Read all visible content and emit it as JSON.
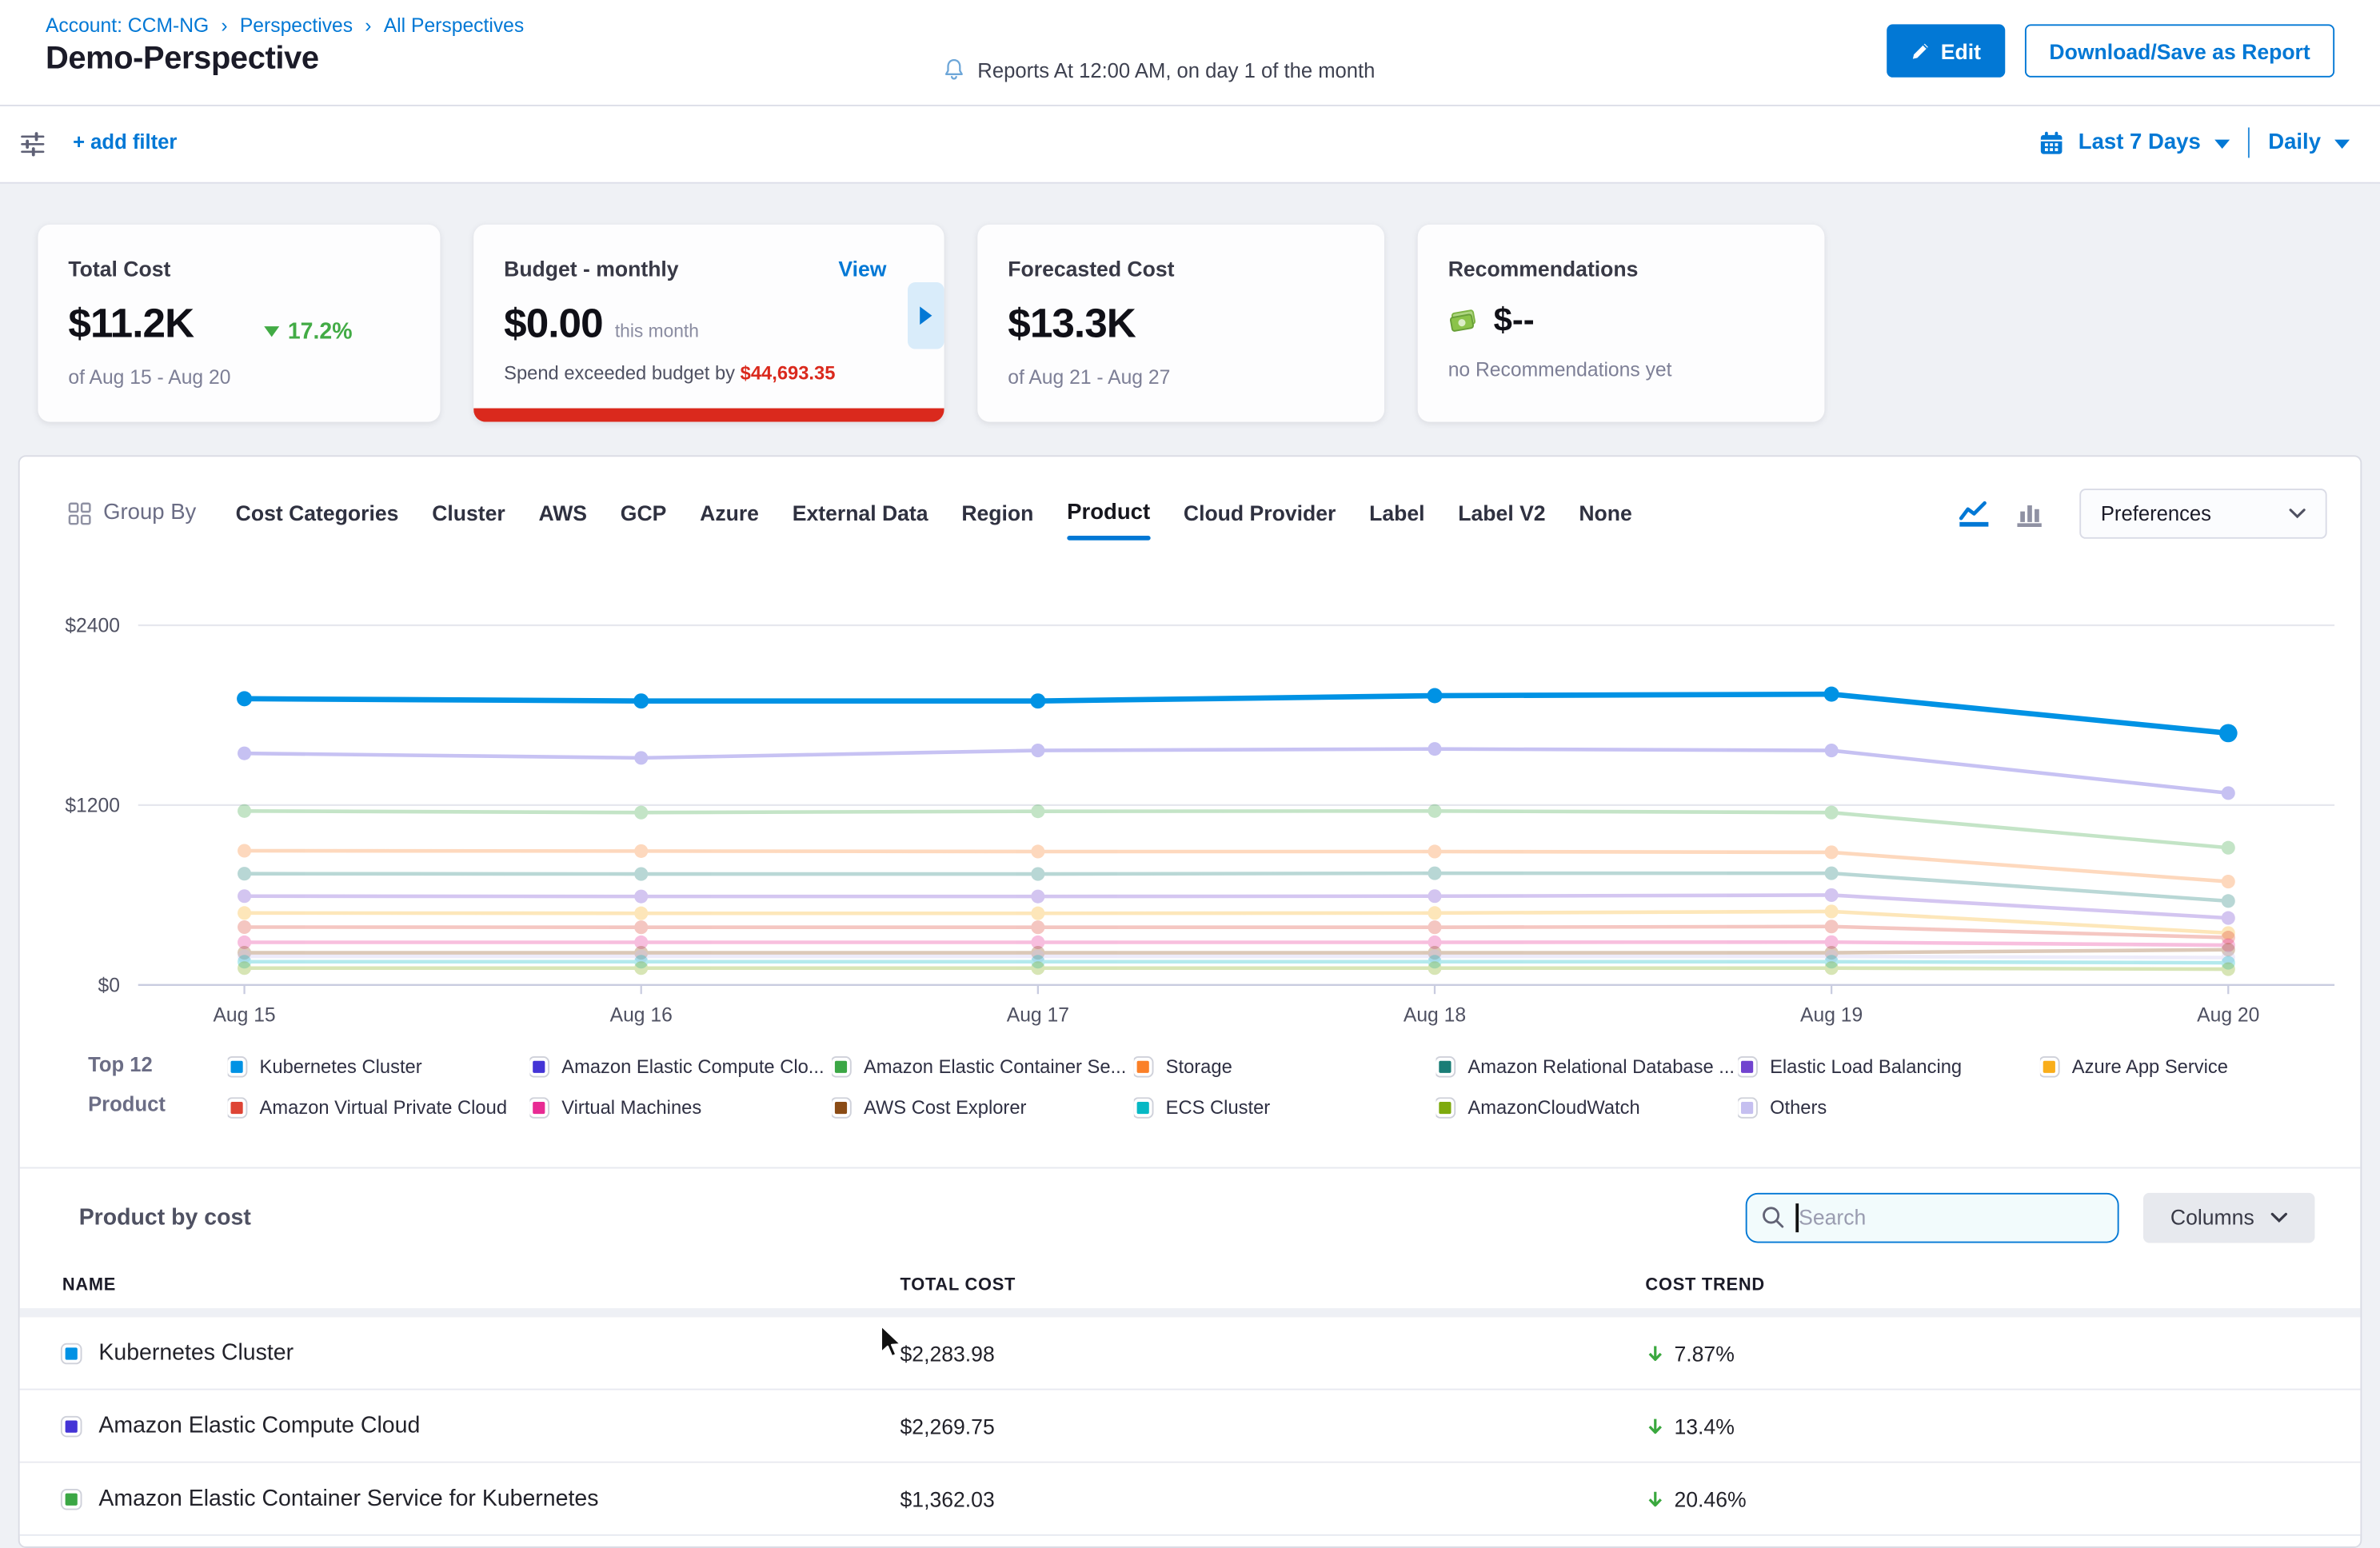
{
  "header": {
    "breadcrumb": [
      {
        "label": "Account: CCM-NG"
      },
      {
        "label": "Perspectives"
      },
      {
        "label": "All Perspectives"
      }
    ],
    "title": "Demo-Perspective",
    "reports_note": "Reports At 12:00 AM, on day 1 of the month",
    "edit_label": "Edit",
    "download_label": "Download/Save as Report"
  },
  "filterbar": {
    "add_filter_label": "+ add filter",
    "date_range_label": "Last 7 Days",
    "granularity_label": "Daily"
  },
  "summary_cards": {
    "total_cost": {
      "title": "Total Cost",
      "value": "$11.2K",
      "trend_value": "17.2%",
      "trend_direction": "down",
      "period": "of Aug 15 - Aug 20"
    },
    "budget": {
      "title": "Budget - monthly",
      "view_label": "View",
      "value": "$0.00",
      "value_note": "this month",
      "exceeded_label": "Spend exceeded budget by",
      "exceeded_amount": "$44,693.35"
    },
    "forecasted_cost": {
      "title": "Forecasted Cost",
      "value": "$13.3K",
      "period": "of Aug 21 - Aug 27"
    },
    "recommendations": {
      "title": "Recommendations",
      "value": "$--",
      "note": "no Recommendations yet"
    }
  },
  "group_by": {
    "label": "Group By",
    "tabs": [
      "Cost Categories",
      "Cluster",
      "AWS",
      "GCP",
      "Azure",
      "External Data",
      "Region",
      "Product",
      "Cloud Provider",
      "Label",
      "Label V2",
      "None"
    ],
    "active_tab": "Product",
    "preferences_label": "Preferences"
  },
  "chart_data": {
    "type": "line",
    "title": "",
    "xlabel": "",
    "ylabel": "",
    "x": [
      "Aug 15",
      "Aug 16",
      "Aug 17",
      "Aug 18",
      "Aug 19",
      "Aug 20"
    ],
    "ylim": [
      0,
      2400
    ],
    "y_ticks": [
      {
        "value": 0,
        "label": "$0"
      },
      {
        "value": 1200,
        "label": "$1200"
      },
      {
        "value": 2400,
        "label": "$2400"
      }
    ],
    "grid": "horizontal",
    "legend_position": "bottom",
    "series": [
      {
        "name": "Kubernetes Cluster",
        "color": "#0092e4",
        "emphasis": true,
        "values": [
          1910,
          1895,
          1895,
          1930,
          1940,
          1680
        ]
      },
      {
        "name": "Amazon Elastic Compute Cloud",
        "color": "#4434d6",
        "emphasis": false,
        "values": [
          1545,
          1515,
          1565,
          1575,
          1565,
          1280
        ]
      },
      {
        "name": "Amazon Elastic Container Service for Kubernetes",
        "color": "#3ba745",
        "emphasis": false,
        "values": [
          1160,
          1150,
          1158,
          1160,
          1150,
          915
        ]
      },
      {
        "name": "Storage",
        "color": "#fb8028",
        "emphasis": false,
        "values": [
          895,
          893,
          890,
          890,
          885,
          690
        ]
      },
      {
        "name": "Amazon Relational Database Service",
        "color": "#197d76",
        "emphasis": false,
        "values": [
          742,
          740,
          740,
          745,
          745,
          560
        ]
      },
      {
        "name": "Elastic Load Balancing",
        "color": "#7143cf",
        "emphasis": false,
        "values": [
          592,
          590,
          590,
          592,
          600,
          447
        ]
      },
      {
        "name": "Azure App Service",
        "color": "#f9ae1b",
        "emphasis": false,
        "values": [
          480,
          478,
          478,
          480,
          490,
          346
        ]
      },
      {
        "name": "Amazon Virtual Private Cloud",
        "color": "#de4435",
        "emphasis": false,
        "values": [
          386,
          385,
          385,
          385,
          390,
          316
        ]
      },
      {
        "name": "Virtual Machines",
        "color": "#e82b93",
        "emphasis": false,
        "values": [
          285,
          285,
          285,
          285,
          286,
          265
        ]
      },
      {
        "name": "AWS Cost Explorer",
        "color": "#8a4b15",
        "emphasis": false,
        "values": [
          215,
          215,
          215,
          215,
          215,
          235
        ]
      },
      {
        "name": "Others",
        "color": "#c5bff0",
        "emphasis": false,
        "values": [
          190,
          190,
          190,
          190,
          190,
          182
        ]
      },
      {
        "name": "ECS Cluster",
        "color": "#06b8c4",
        "emphasis": false,
        "values": [
          155,
          155,
          155,
          155,
          155,
          148
        ]
      },
      {
        "name": "AmazonCloudWatch",
        "color": "#7eaa0d",
        "emphasis": false,
        "values": [
          112,
          112,
          112,
          112,
          112,
          105
        ]
      }
    ]
  },
  "legend": {
    "label_line1": "Top 12",
    "label_line2": "Product",
    "items": [
      {
        "label": "Kubernetes Cluster",
        "color": "#0092e4"
      },
      {
        "label": "Amazon Virtual Private Cloud",
        "color": "#de4435"
      },
      {
        "label": "Amazon Elastic Compute Clo...",
        "color": "#4434d6"
      },
      {
        "label": "Virtual Machines",
        "color": "#e82b93"
      },
      {
        "label": "Amazon Elastic Container Se...",
        "color": "#3ba745"
      },
      {
        "label": "AWS Cost Explorer",
        "color": "#8a4b15"
      },
      {
        "label": "Storage",
        "color": "#fb8028"
      },
      {
        "label": "ECS Cluster",
        "color": "#06b8c4"
      },
      {
        "label": "Amazon Relational Database ...",
        "color": "#197d76"
      },
      {
        "label": "AmazonCloudWatch",
        "color": "#7eaa0d"
      },
      {
        "label": "Elastic Load Balancing",
        "color": "#7143cf"
      },
      {
        "label": "Others",
        "color": "#c5bff0"
      },
      {
        "label": "Azure App Service",
        "color": "#f9ae1b"
      }
    ]
  },
  "cost_table": {
    "section_title": "Product by cost",
    "search_placeholder": "Search",
    "columns_label": "Columns",
    "headers": [
      "NAME",
      "TOTAL COST",
      "COST TREND"
    ],
    "rows": [
      {
        "name": "Kubernetes Cluster",
        "color": "#0092e4",
        "total_cost": "$2,283.98",
        "trend": "7.87%",
        "trend_direction": "down"
      },
      {
        "name": "Amazon Elastic Compute Cloud",
        "color": "#4434d6",
        "total_cost": "$2,269.75",
        "trend": "13.4%",
        "trend_direction": "down"
      },
      {
        "name": "Amazon Elastic Container Service for Kubernetes",
        "color": "#3ba745",
        "total_cost": "$1,362.03",
        "trend": "20.46%",
        "trend_direction": "down"
      }
    ]
  },
  "colors": {
    "primary_blue": "#0278d5",
    "green": "#42ab45",
    "red": "#da291d",
    "text_dark": "#22222a",
    "text_gray": "#6b6d85"
  }
}
